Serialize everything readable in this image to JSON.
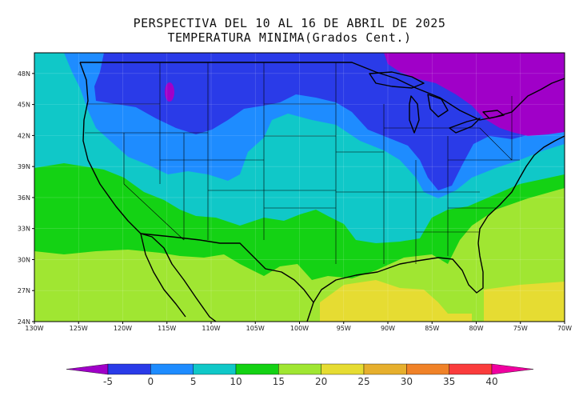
{
  "title": {
    "line1": "PERSPECTIVA DEL 10 AL 16 DE ABRIL DE 2025",
    "line2": "TEMPERATURA MINIMA(Grados Cent.)"
  },
  "map": {
    "lon_range": [
      -130,
      -70
    ],
    "lat_range": [
      24,
      50
    ],
    "lon_ticks": [
      {
        "value": -130,
        "label": "130W"
      },
      {
        "value": -125,
        "label": "125W"
      },
      {
        "value": -120,
        "label": "120W"
      },
      {
        "value": -115,
        "label": "115W"
      },
      {
        "value": -110,
        "label": "110W"
      },
      {
        "value": -105,
        "label": "105W"
      },
      {
        "value": -100,
        "label": "100W"
      },
      {
        "value": -95,
        "label": "95W"
      },
      {
        "value": -90,
        "label": "90W"
      },
      {
        "value": -85,
        "label": "85W"
      },
      {
        "value": -80,
        "label": "80W"
      },
      {
        "value": -75,
        "label": "75W"
      },
      {
        "value": -70,
        "label": "70W"
      }
    ],
    "lat_ticks": [
      {
        "value": 24,
        "label": "24N"
      },
      {
        "value": 27,
        "label": "27N"
      },
      {
        "value": 30,
        "label": "30N"
      },
      {
        "value": 33,
        "label": "33N"
      },
      {
        "value": 36,
        "label": "36N"
      },
      {
        "value": 39,
        "label": "39N"
      },
      {
        "value": 42,
        "label": "42N"
      },
      {
        "value": 45,
        "label": "45N"
      },
      {
        "value": 48,
        "label": "48N"
      }
    ]
  },
  "colorbar": {
    "levels": [
      -5,
      0,
      5,
      10,
      15,
      20,
      25,
      30,
      35,
      40
    ],
    "labels": [
      "-5",
      "0",
      "5",
      "10",
      "15",
      "20",
      "25",
      "30",
      "35",
      "40"
    ],
    "colors": [
      "#a000c8",
      "#2a3be8",
      "#1e8cff",
      "#10c8c8",
      "#14d214",
      "#a0e632",
      "#e6dc32",
      "#e6af2d",
      "#f08228",
      "#fa3c3c",
      "#f000a0"
    ]
  },
  "colors": {
    "purple": "#a000c8",
    "blue": "#2a3be8",
    "lightblue": "#1e8cff",
    "cyan": "#10c8c8",
    "green": "#14d214",
    "lightgreen": "#a0e632",
    "yellow": "#e6dc32"
  }
}
